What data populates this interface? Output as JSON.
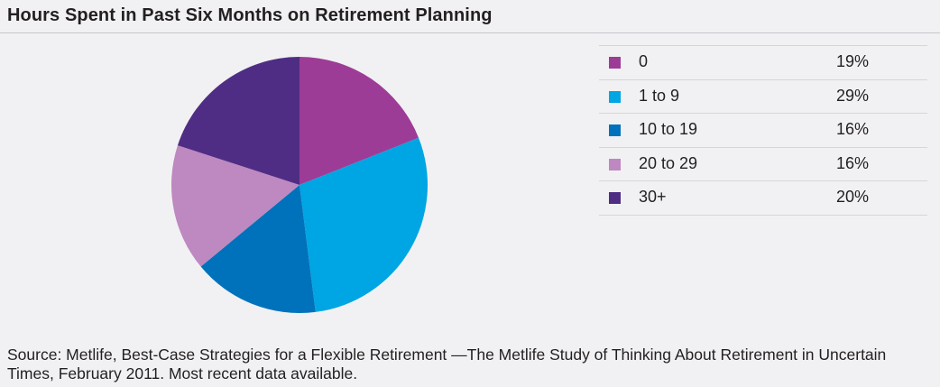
{
  "chart_data": {
    "type": "pie",
    "title": "Hours Spent in Past Six Months on Retirement Planning",
    "categories": [
      "0",
      "1 to 9",
      "10 to 19",
      "20 to 29",
      "30+"
    ],
    "values": [
      19,
      29,
      16,
      16,
      20
    ],
    "value_labels": [
      "19%",
      "29%",
      "16%",
      "16%",
      "20%"
    ],
    "colors": [
      "#9d3c96",
      "#00a5e3",
      "#0072bb",
      "#be88c0",
      "#4f2d84"
    ],
    "start_angle": "12 o'clock",
    "direction": "clockwise",
    "legend_placement": "right"
  },
  "source": "Source: Metlife, Best-Case Strategies for a Flexible Retirement —The Metlife Study of Thinking About Retirement in Uncertain Times, February 2011. Most recent data available."
}
